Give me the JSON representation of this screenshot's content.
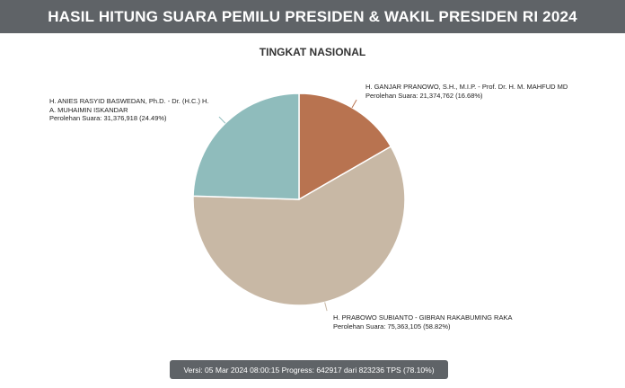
{
  "header": {
    "title": "HASIL HITUNG SUARA PEMILU PRESIDEN & WAKIL PRESIDEN RI 2024"
  },
  "chart_data": {
    "type": "pie",
    "title": "TINGKAT NASIONAL",
    "vote_label": "Perolehan Suara:",
    "slices": [
      {
        "name": "H. GANJAR PRANOWO, S.H., M.I.P. - Prof. Dr. H. M. MAHFUD MD",
        "name_lines": [
          "H. GANJAR PRANOWO, S.H., M.I.P. - Prof. Dr. H. M. MAHFUD MD"
        ],
        "votes": 21374762,
        "votes_text": "21,374,762",
        "percent": 16.68,
        "percent_text": "(16.68%)",
        "color": "#b87350"
      },
      {
        "name": "H. PRABOWO SUBIANTO - GIBRAN RAKABUMING RAKA",
        "name_lines": [
          "H. PRABOWO SUBIANTO - GIBRAN RAKABUMING RAKA"
        ],
        "votes": 75363105,
        "votes_text": "75,363,105",
        "percent": 58.82,
        "percent_text": "(58.82%)",
        "color": "#c8b8a5"
      },
      {
        "name": "H. ANIES RASYID BASWEDAN, Ph.D. - Dr. (H.C.) H. A. MUHAIMIN ISKANDAR",
        "name_lines": [
          "H. ANIES RASYID BASWEDAN, Ph.D. - Dr. (H.C.) H.",
          "A. MUHAIMIN ISKANDAR"
        ],
        "votes": 31376918,
        "votes_text": "31,376,918",
        "percent": 24.49,
        "percent_text": "(24.49%)",
        "color": "#8fbcbc"
      }
    ]
  },
  "status": {
    "text": "Versi: 05 Mar 2024 08:00:15 Progress: 642917 dari 823236 TPS (78.10%)"
  }
}
